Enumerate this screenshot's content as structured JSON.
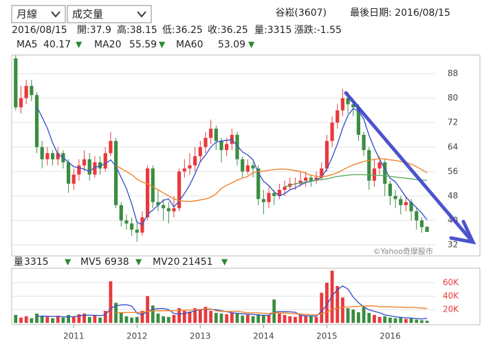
{
  "controls": [
    "月線",
    "成交量"
  ],
  "header": {
    "stock": "谷崧(3607)",
    "last_date": "最後日期: 2016/08/15",
    "info": [
      "2016/08/15",
      "開:37.9",
      "高:38.15",
      "低:36.25",
      "收:36.25",
      "量:3315",
      "漲跌:-1.55"
    ]
  },
  "chart_data": [
    {
      "type": "candlestick",
      "up_color": "#e8393c",
      "down_color": "#3a8d40",
      "open": [
        93,
        77,
        80,
        84,
        81,
        64,
        60,
        62,
        60,
        62,
        59,
        52,
        55,
        58,
        60,
        55,
        59,
        57,
        62,
        66,
        45,
        40,
        39,
        37,
        36,
        41,
        57,
        46,
        45,
        44,
        43,
        44,
        56,
        57,
        58,
        61,
        64,
        67,
        70,
        66,
        63,
        65,
        68,
        60,
        56,
        58,
        57,
        47,
        46,
        49,
        48,
        50,
        51,
        52,
        52,
        53,
        54,
        53,
        54,
        57,
        66,
        72,
        76,
        80,
        78,
        77,
        68,
        63,
        53,
        57,
        59,
        52,
        48,
        47,
        45,
        46,
        43,
        40,
        37.9
      ],
      "high": [
        94,
        84,
        86,
        86,
        82,
        66,
        64,
        63,
        64,
        63,
        60,
        57,
        60,
        63,
        62,
        61,
        61,
        64,
        69,
        67,
        46,
        42,
        41,
        40,
        43,
        58,
        58,
        50,
        47,
        46,
        48,
        57,
        60,
        62,
        64,
        66,
        69,
        73,
        71,
        67,
        67,
        70,
        69,
        61,
        60,
        59,
        58,
        50,
        51,
        50,
        52,
        53,
        54,
        54,
        56,
        56,
        55,
        56,
        59,
        68,
        74,
        78,
        83,
        82,
        79,
        78,
        69,
        64,
        60,
        61,
        60,
        53,
        50,
        48,
        48,
        47,
        44,
        41,
        38.15
      ],
      "low": [
        76,
        75,
        78,
        79,
        62,
        57,
        58,
        58,
        58,
        57,
        49,
        50,
        53,
        56,
        53,
        54,
        55,
        56,
        61,
        44,
        38,
        37,
        35,
        33,
        35,
        40,
        44,
        43,
        40,
        39,
        41,
        43,
        54,
        55,
        56,
        59,
        62,
        65,
        63,
        59,
        61,
        63,
        58,
        54,
        55,
        54,
        45,
        42,
        44,
        45,
        47,
        48,
        50,
        50,
        51,
        51,
        51,
        52,
        53,
        56,
        64,
        70,
        74,
        75,
        74,
        66,
        61,
        50,
        51,
        55,
        48,
        45,
        44,
        42,
        43,
        40,
        37,
        36,
        36.25
      ],
      "close": [
        77,
        80,
        84,
        81,
        64,
        60,
        62,
        60,
        62,
        59,
        52,
        55,
        58,
        60,
        55,
        59,
        57,
        62,
        66,
        45,
        40,
        39,
        37,
        36,
        41,
        57,
        46,
        45,
        44,
        43,
        44,
        56,
        57,
        58,
        61,
        64,
        67,
        70,
        66,
        63,
        65,
        68,
        60,
        56,
        58,
        57,
        47,
        46,
        49,
        48,
        50,
        51,
        52,
        52,
        53,
        54,
        53,
        54,
        57,
        66,
        72,
        76,
        80,
        78,
        77,
        68,
        63,
        53,
        57,
        59,
        52,
        48,
        47,
        45,
        46,
        43,
        40,
        37.8,
        36.25
      ],
      "series": [
        {
          "name": "MA5",
          "color": "#3a55c8",
          "trend": "▼",
          "values": [
            null,
            null,
            null,
            null,
            77.2,
            73.8,
            70.2,
            65.4,
            61.6,
            60.6,
            59,
            57.6,
            57.2,
            56.8,
            56,
            57.4,
            57.8,
            58.6,
            59.8,
            57.8,
            54,
            50.4,
            45.4,
            39.4,
            38.6,
            42,
            43.4,
            45,
            46.6,
            47,
            44.4,
            46.4,
            48.8,
            51.6,
            55.2,
            59.2,
            61.4,
            64,
            65.6,
            66,
            66.2,
            66.4,
            64.4,
            62.4,
            61.4,
            59.8,
            55.6,
            52.8,
            51.4,
            49.4,
            48,
            48.8,
            50,
            50.6,
            51.6,
            52.4,
            52.8,
            53.2,
            54.2,
            56.8,
            60.6,
            65,
            70.2,
            74.4,
            76.6,
            75.8,
            73.2,
            67.8,
            63.6,
            60,
            56.8,
            53.8,
            52.6,
            50.2,
            47.6,
            45.8,
            44.2,
            42.4,
            40.17
          ]
        },
        {
          "name": "MA20",
          "color": "#f0822a",
          "trend": "▼",
          "values": [
            null,
            null,
            null,
            null,
            null,
            null,
            null,
            null,
            null,
            null,
            null,
            null,
            null,
            null,
            null,
            null,
            null,
            null,
            null,
            58,
            57,
            56,
            55,
            53.5,
            52.5,
            52,
            51,
            50,
            49,
            48,
            47,
            46.5,
            46.3,
            46.2,
            46.4,
            46.7,
            47,
            47.6,
            48.7,
            50.5,
            51.5,
            52.3,
            53.2,
            53.8,
            54.4,
            55.6,
            56,
            56.1,
            56.4,
            56.6,
            56.8,
            56.8,
            56.6,
            56.3,
            56,
            55.4,
            54.8,
            54.4,
            54.4,
            54.5,
            55,
            55.6,
            56.5,
            57.4,
            58.2,
            58.7,
            59.3,
            59.6,
            60,
            60.2,
            60.1,
            59.8,
            59.6,
            59.3,
            59,
            58.4,
            57.6,
            56.6,
            55.59
          ]
        },
        {
          "name": "MA60",
          "color": "#5fa862",
          "trend": "▼",
          "values": [
            null,
            null,
            null,
            null,
            null,
            null,
            null,
            null,
            null,
            null,
            null,
            null,
            null,
            null,
            null,
            null,
            null,
            null,
            null,
            null,
            null,
            null,
            null,
            null,
            null,
            null,
            null,
            null,
            null,
            null,
            null,
            null,
            null,
            null,
            null,
            null,
            null,
            null,
            null,
            null,
            null,
            null,
            null,
            null,
            null,
            null,
            null,
            null,
            null,
            null,
            null,
            51,
            51.5,
            52,
            52.3,
            52.6,
            52.9,
            53.2,
            53.4,
            53.6,
            54,
            54.4,
            54.6,
            54.8,
            55,
            55,
            55,
            54.9,
            54.8,
            54.7,
            54.6,
            54.4,
            54.2,
            54,
            53.8,
            53.6,
            53.4,
            53.2,
            53.09
          ]
        }
      ],
      "ylim": [
        28.4,
        94.1
      ],
      "yticks": [
        32,
        40,
        48,
        56,
        64,
        72,
        80,
        88
      ],
      "grid": true,
      "annotation": "©Yahoo奇摩股市"
    },
    {
      "type": "bar",
      "name": "量",
      "trend": "▼",
      "categories": [
        null,
        null,
        null,
        null,
        null,
        null,
        null,
        null,
        null,
        null,
        null,
        "2011",
        null,
        null,
        null,
        null,
        null,
        null,
        null,
        null,
        null,
        null,
        null,
        "2012",
        null,
        null,
        null,
        null,
        null,
        null,
        null,
        null,
        null,
        null,
        null,
        "2013",
        null,
        null,
        null,
        null,
        null,
        null,
        null,
        null,
        null,
        null,
        null,
        "2014",
        null,
        null,
        null,
        null,
        null,
        null,
        null,
        null,
        null,
        null,
        null,
        "2015",
        null,
        null,
        null,
        null,
        null,
        null,
        null,
        null,
        null,
        null,
        null,
        "2016",
        null,
        null,
        null,
        null,
        null,
        null,
        null
      ],
      "values": [
        12000,
        8000,
        10000,
        7000,
        14000,
        11000,
        9000,
        7000,
        10000,
        8000,
        12000,
        10000,
        13000,
        14000,
        9000,
        11000,
        8000,
        18000,
        62000,
        30000,
        16000,
        10000,
        8000,
        9000,
        18000,
        40000,
        26000,
        14000,
        10000,
        9000,
        12000,
        22000,
        18000,
        17000,
        22000,
        20000,
        24000,
        18000,
        15000,
        14000,
        13000,
        16000,
        14000,
        11000,
        12000,
        10000,
        13000,
        11000,
        12000,
        35000,
        14000,
        12000,
        10000,
        9000,
        12000,
        11000,
        10000,
        9000,
        45000,
        60000,
        78000,
        55000,
        38000,
        22000,
        20000,
        16000,
        24000,
        15000,
        12000,
        9000,
        10000,
        8000,
        7000,
        8000,
        6000,
        7000,
        5000,
        4000,
        3315
      ],
      "series": [
        {
          "name": "MV5",
          "color": "#3a55c8",
          "trend": "▼",
          "values": [
            null,
            null,
            null,
            null,
            10200,
            10000,
            10200,
            9600,
            10200,
            9000,
            9200,
            9400,
            10600,
            11400,
            11600,
            11400,
            11000,
            12000,
            21600,
            25800,
            26800,
            27200,
            25200,
            14600,
            12200,
            17000,
            20200,
            21400,
            21600,
            19800,
            14200,
            13400,
            14200,
            15600,
            18200,
            19800,
            20200,
            20200,
            19800,
            18200,
            16800,
            15200,
            14400,
            13600,
            13200,
            12600,
            12000,
            11400,
            11600,
            16200,
            17000,
            16800,
            16600,
            16000,
            11400,
            10800,
            10400,
            10200,
            17400,
            27000,
            40400,
            49400,
            55200,
            50600,
            38600,
            30200,
            24000,
            19400,
            17400,
            15200,
            12000,
            10800,
            9200,
            8400,
            7800,
            7200,
            6600,
            6000,
            6938
          ]
        },
        {
          "name": "MV20",
          "color": "#f0822a",
          "trend": "▼",
          "values": [
            null,
            null,
            null,
            null,
            null,
            null,
            null,
            null,
            null,
            null,
            null,
            null,
            null,
            null,
            null,
            null,
            null,
            null,
            null,
            15000,
            15500,
            15600,
            15600,
            15600,
            16000,
            17300,
            18000,
            18200,
            18200,
            18200,
            18200,
            18700,
            19000,
            19200,
            19700,
            20200,
            20900,
            21000,
            18100,
            17300,
            17000,
            17300,
            17600,
            16200,
            15200,
            15200,
            15000,
            14400,
            14200,
            15400,
            15000,
            14600,
            14300,
            13700,
            13300,
            13000,
            12400,
            12100,
            13800,
            16300,
            19800,
            22100,
            23400,
            23900,
            24300,
            24600,
            25300,
            25500,
            25300,
            24200,
            24100,
            24000,
            23700,
            23600,
            23300,
            23100,
            22800,
            22300,
            21451
          ]
        }
      ],
      "ylim": [
        0,
        80000
      ],
      "yticks": [
        {
          "value": 20000,
          "label": "20K"
        },
        {
          "value": 40000,
          "label": "40K"
        },
        {
          "value": 60000,
          "label": "60K"
        }
      ]
    }
  ]
}
